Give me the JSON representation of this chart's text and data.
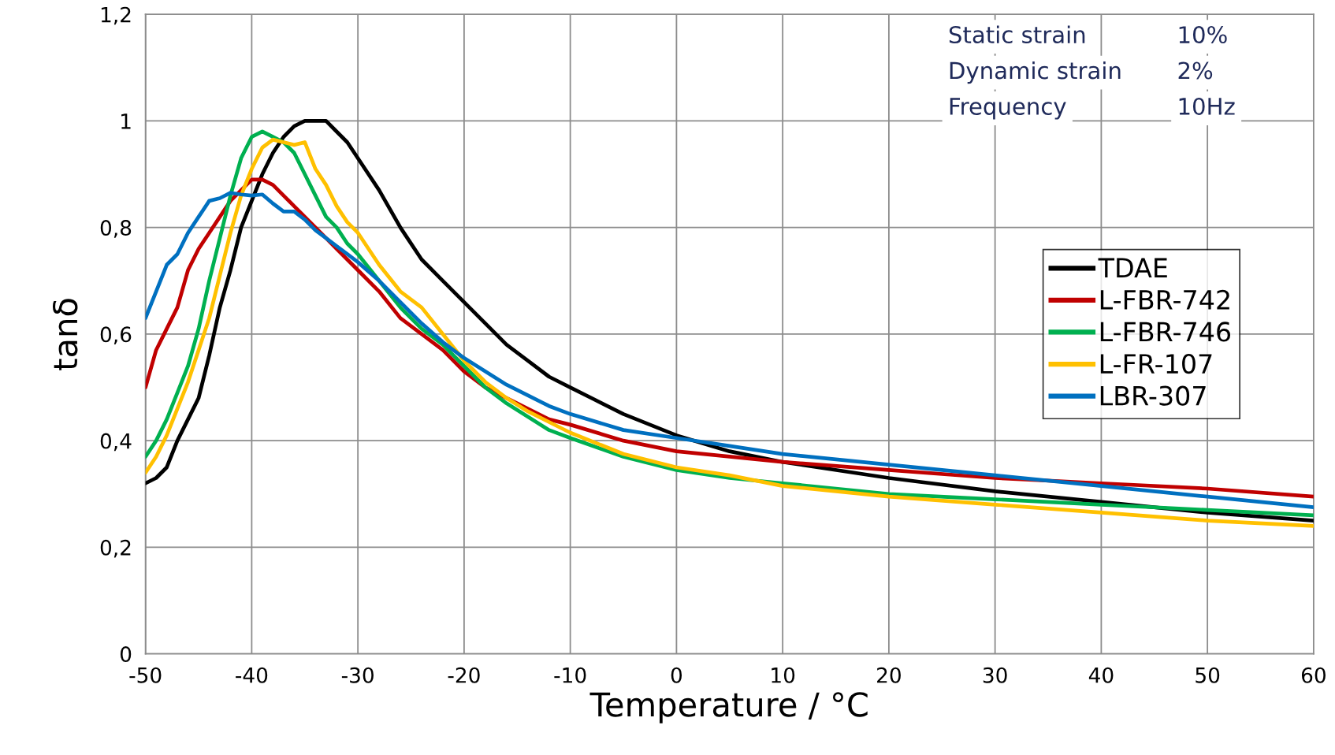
{
  "chart_data": {
    "type": "line",
    "xlabel": "Temperature / °C",
    "ylabel": "tanδ",
    "x": [
      -50,
      -49,
      -48,
      -47,
      -46,
      -45,
      -44,
      -43,
      -42,
      -41,
      -40,
      -39,
      -38,
      -37,
      -36,
      -35,
      -34,
      -33,
      -32,
      -31,
      -30,
      -28,
      -26,
      -24,
      -22,
      -20,
      -18,
      -16,
      -14,
      -12,
      -10,
      -5,
      0,
      5,
      10,
      20,
      30,
      40,
      50,
      60
    ],
    "series": [
      {
        "name": "TDAE",
        "color": "#000000",
        "values": [
          0.32,
          0.33,
          0.35,
          0.4,
          0.44,
          0.48,
          0.56,
          0.65,
          0.72,
          0.8,
          0.85,
          0.9,
          0.94,
          0.97,
          0.99,
          1.0,
          1.0,
          1.0,
          0.98,
          0.96,
          0.93,
          0.87,
          0.8,
          0.74,
          0.7,
          0.66,
          0.62,
          0.58,
          0.55,
          0.52,
          0.5,
          0.45,
          0.41,
          0.38,
          0.36,
          0.33,
          0.305,
          0.285,
          0.265,
          0.25
        ]
      },
      {
        "name": "L-FBR-742",
        "color": "#c00000",
        "values": [
          0.5,
          0.57,
          0.61,
          0.65,
          0.72,
          0.76,
          0.79,
          0.82,
          0.85,
          0.87,
          0.89,
          0.89,
          0.88,
          0.86,
          0.84,
          0.82,
          0.8,
          0.78,
          0.76,
          0.74,
          0.72,
          0.68,
          0.63,
          0.6,
          0.57,
          0.53,
          0.5,
          0.48,
          0.46,
          0.44,
          0.43,
          0.4,
          0.38,
          0.37,
          0.36,
          0.345,
          0.33,
          0.32,
          0.31,
          0.295
        ]
      },
      {
        "name": "L-FBR-746",
        "color": "#00b050",
        "values": [
          0.37,
          0.4,
          0.44,
          0.49,
          0.54,
          0.61,
          0.7,
          0.78,
          0.86,
          0.93,
          0.97,
          0.98,
          0.97,
          0.96,
          0.94,
          0.9,
          0.86,
          0.82,
          0.8,
          0.77,
          0.75,
          0.7,
          0.65,
          0.61,
          0.58,
          0.54,
          0.5,
          0.47,
          0.445,
          0.42,
          0.405,
          0.37,
          0.345,
          0.33,
          0.32,
          0.3,
          0.29,
          0.28,
          0.27,
          0.26
        ]
      },
      {
        "name": "L-FR-107",
        "color": "#ffc000",
        "values": [
          0.34,
          0.37,
          0.41,
          0.46,
          0.51,
          0.57,
          0.63,
          0.71,
          0.79,
          0.86,
          0.91,
          0.95,
          0.965,
          0.96,
          0.955,
          0.96,
          0.91,
          0.88,
          0.84,
          0.81,
          0.79,
          0.73,
          0.68,
          0.65,
          0.6,
          0.55,
          0.51,
          0.48,
          0.455,
          0.435,
          0.415,
          0.375,
          0.35,
          0.335,
          0.315,
          0.295,
          0.28,
          0.265,
          0.25,
          0.24
        ]
      },
      {
        "name": "LBR-307",
        "color": "#0070c0",
        "values": [
          0.63,
          0.68,
          0.73,
          0.75,
          0.79,
          0.82,
          0.85,
          0.855,
          0.865,
          0.862,
          0.86,
          0.862,
          0.845,
          0.83,
          0.83,
          0.815,
          0.795,
          0.78,
          0.765,
          0.75,
          0.735,
          0.7,
          0.66,
          0.62,
          0.585,
          0.555,
          0.53,
          0.505,
          0.485,
          0.465,
          0.45,
          0.42,
          0.405,
          0.39,
          0.375,
          0.355,
          0.335,
          0.315,
          0.295,
          0.275
        ]
      }
    ],
    "xlim": [
      -50,
      60
    ],
    "xticks": [
      -50,
      -40,
      -30,
      -20,
      -10,
      0,
      10,
      20,
      30,
      40,
      50,
      60
    ],
    "ylim": [
      0,
      1.2
    ],
    "yticks": [
      0,
      {
        "value": 0.2,
        "label": "0,2"
      },
      {
        "value": 0.4,
        "label": "0,4"
      },
      {
        "value": 0.6,
        "label": "0,6"
      },
      {
        "value": 0.8,
        "label": "0,8"
      },
      1,
      {
        "value": 1.2,
        "label": "1,2"
      }
    ],
    "grid": true,
    "legend": "right",
    "marker": "none",
    "line_style": "solid",
    "annotations": [
      "Static strain",
      "10%",
      "Dynamic strain",
      "2%",
      "Frequency",
      "10Hz"
    ]
  }
}
